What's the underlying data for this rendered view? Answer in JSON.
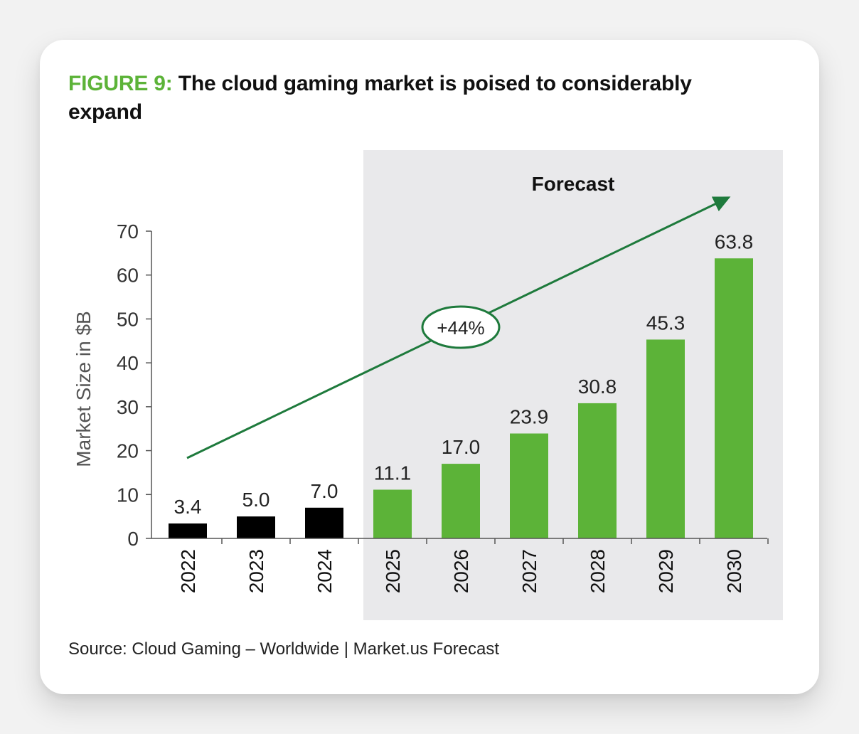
{
  "header": {
    "figure_label": "FIGURE 9:",
    "title": "The cloud gaming market is poised to considerably expand"
  },
  "footer": {
    "source": "Source: Cloud Gaming – Worldwide | Market.us Forecast"
  },
  "colors": {
    "accent": "#5cb338",
    "actual_bar": "#000000",
    "forecast_bar": "#5cb338",
    "trend_arrow": "#1e7a3c",
    "forecast_shade": "#e9e9eb"
  },
  "chart_data": {
    "type": "bar",
    "title": "The cloud gaming market is poised to considerably expand",
    "xlabel": "",
    "ylabel": "Market Size in $B",
    "ylim": [
      0,
      70
    ],
    "yticks": [
      0,
      10,
      20,
      30,
      40,
      50,
      60,
      70
    ],
    "categories": [
      "2022",
      "2023",
      "2024",
      "2025",
      "2026",
      "2027",
      "2028",
      "2029",
      "2030"
    ],
    "values": [
      3.4,
      5.0,
      7.0,
      11.1,
      17.0,
      23.9,
      30.8,
      45.3,
      63.8
    ],
    "value_labels": [
      "3.4",
      "5.0",
      "7.0",
      "11.1",
      "17.0",
      "23.9",
      "30.8",
      "45.3",
      "63.8"
    ],
    "forecast": [
      false,
      false,
      false,
      true,
      true,
      true,
      true,
      true,
      true
    ],
    "forecast_label": "Forecast",
    "growth_annotation": "+44%",
    "grid": false
  }
}
